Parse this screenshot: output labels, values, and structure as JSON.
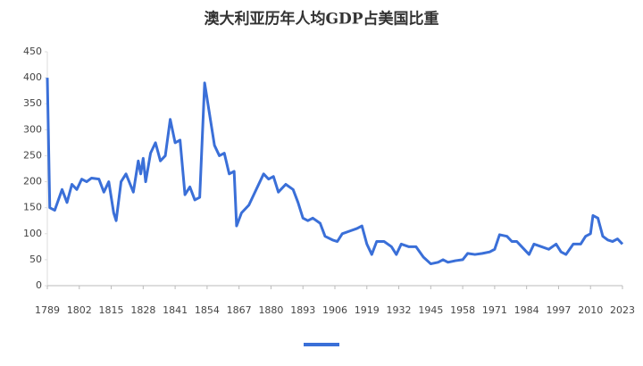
{
  "chart_data": {
    "type": "line",
    "title": "澳大利亚历年人均GDP占美国比重",
    "x": [
      1789,
      1790,
      1792,
      1795,
      1797,
      1799,
      1801,
      1803,
      1805,
      1807,
      1810,
      1812,
      1814,
      1816,
      1817,
      1819,
      1821,
      1824,
      1826,
      1827,
      1828,
      1829,
      1831,
      1833,
      1835,
      1837,
      1839,
      1841,
      1843,
      1845,
      1847,
      1849,
      1851,
      1853,
      1855,
      1857,
      1859,
      1861,
      1863,
      1865,
      1866,
      1868,
      1871,
      1874,
      1877,
      1879,
      1881,
      1883,
      1886,
      1889,
      1891,
      1893,
      1895,
      1897,
      1900,
      1902,
      1905,
      1907,
      1909,
      1912,
      1915,
      1917,
      1919,
      1921,
      1923,
      1926,
      1929,
      1931,
      1933,
      1936,
      1939,
      1942,
      1945,
      1948,
      1950,
      1952,
      1955,
      1958,
      1960,
      1963,
      1966,
      1969,
      1971,
      1973,
      1976,
      1978,
      1980,
      1982,
      1985,
      1987,
      1990,
      1993,
      1996,
      1998,
      2000,
      2003,
      2006,
      2008,
      2010,
      2011,
      2013,
      2015,
      2017,
      2019,
      2021,
      2023
    ],
    "series": [
      {
        "color": "#3a6fd8",
        "values": [
          400,
          150,
          145,
          185,
          160,
          195,
          185,
          205,
          200,
          207,
          205,
          180,
          200,
          140,
          125,
          200,
          215,
          180,
          240,
          215,
          245,
          200,
          255,
          275,
          240,
          250,
          320,
          275,
          280,
          175,
          190,
          165,
          170,
          390,
          330,
          270,
          250,
          255,
          215,
          220,
          115,
          140,
          155,
          185,
          215,
          205,
          210,
          180,
          195,
          185,
          160,
          130,
          125,
          130,
          120,
          95,
          88,
          85,
          100,
          105,
          110,
          115,
          80,
          60,
          85,
          85,
          75,
          60,
          80,
          75,
          75,
          55,
          42,
          45,
          50,
          45,
          48,
          50,
          62,
          60,
          62,
          65,
          70,
          98,
          95,
          85,
          85,
          75,
          60,
          80,
          75,
          70,
          80,
          65,
          60,
          80,
          80,
          95,
          100,
          135,
          130,
          95,
          88,
          85,
          90,
          80
        ]
      }
    ],
    "xlim": [
      1789,
      2023
    ],
    "xticks": [
      1789,
      1802,
      1815,
      1828,
      1841,
      1854,
      1867,
      1880,
      1893,
      1906,
      1919,
      1932,
      1945,
      1958,
      1971,
      1984,
      1997,
      2010,
      2023
    ],
    "ylim": [
      0,
      450
    ],
    "yticks": [
      0,
      50,
      100,
      150,
      200,
      250,
      300,
      350,
      400,
      450
    ],
    "grid": false
  }
}
